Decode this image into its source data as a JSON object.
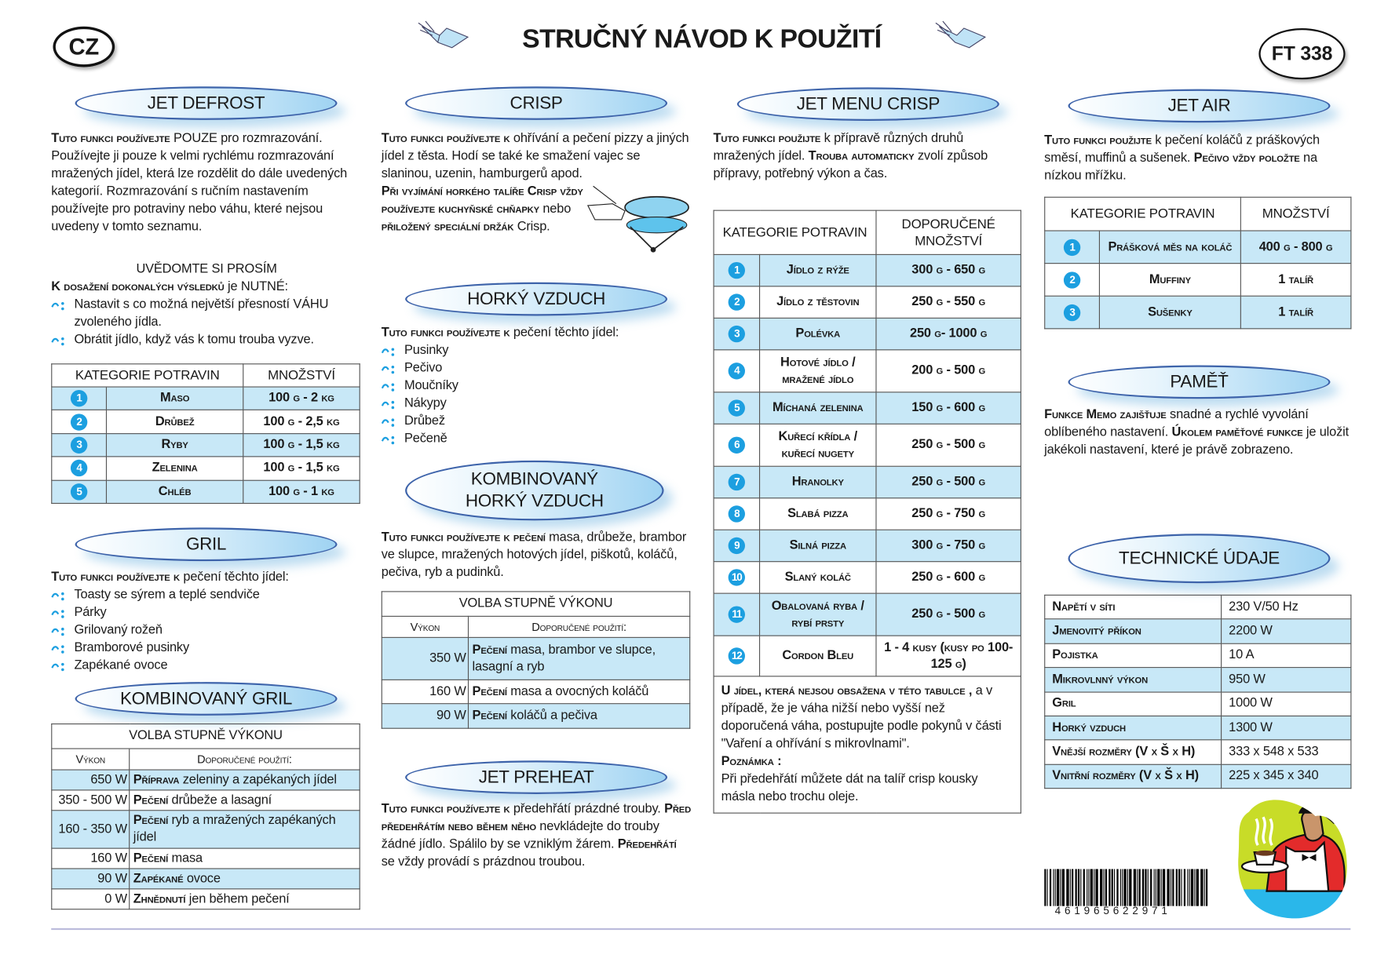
{
  "header": {
    "country": "CZ",
    "title": "STRUČNÝ NÁVOD K POUŽITÍ",
    "model": "FT 338"
  },
  "colors": {
    "accent": "#1c9fe0",
    "table_row": "#c8e8f7",
    "pill_border": "#3d63aa"
  },
  "jet_defrost": {
    "title": "JET DEFROST",
    "intro": [
      {
        "s": "Tuto funkci používejte"
      },
      {
        "t": " POUZE pro rozmrazování."
      },
      {
        "t": " Používejte ji pouze k velmi rychlému rozmrazování mražených jídel, která lze rozdělit do dále uvedených kategorií. Rozmrazování s ručním nastavením používejte pro potraviny nebo váhu, které nejsou uvedeny v tomto seznamu."
      }
    ],
    "note_heading": "UVĚDOMTE SI PROSÍM",
    "note": [
      {
        "s": "K dosažení dokonalých výsledků"
      },
      {
        "t": " je NUTNÉ:"
      }
    ],
    "bullets": [
      "Nastavit s co možná největší přesností VÁHU zvoleného jídla.",
      "Obrátit jídlo, když vás k tomu trouba vyzve."
    ],
    "table": {
      "headers": [
        "KATEGORIE POTRAVIN",
        "MNOŽSTVÍ"
      ],
      "rows": [
        {
          "n": "1",
          "name": "Maso",
          "qty": "100 g - 2 kg"
        },
        {
          "n": "2",
          "name": "Drůbež",
          "qty": "100 g - 2,5 kg"
        },
        {
          "n": "3",
          "name": "Ryby",
          "qty": "100 g - 1,5 kg"
        },
        {
          "n": "4",
          "name": "Zelenina",
          "qty": "100 g - 1,5 kg"
        },
        {
          "n": "5",
          "name": "Chléb",
          "qty": "100 g - 1 kg"
        }
      ]
    }
  },
  "gril": {
    "title": "GRIL",
    "intro": [
      {
        "s": "Tuto funkci používejte k"
      },
      {
        "t": " pečení těchto jídel:"
      }
    ],
    "bullets": [
      "Toasty se sýrem a teplé sendviče",
      "Párky",
      "Grilovaný rožeň",
      "Bramborové pusinky",
      "Zapékané ovoce"
    ]
  },
  "kombinovany_gril": {
    "title": "KOMBINOVANÝ GRIL",
    "table": {
      "title": "VOLBA STUPNĚ VÝKONU",
      "headers": [
        "Výkon",
        "Doporučené použití:"
      ],
      "rows": [
        {
          "p": "650 W",
          "lead": "Příprava",
          "text": " zeleniny a zapékaných jídel"
        },
        {
          "p": "350 - 500 W",
          "lead": "Pečení",
          "text": " drůbeže a lasagní"
        },
        {
          "p": "160 - 350 W",
          "lead": "Pečení",
          "text": " ryb a mražených zapékaných jídel"
        },
        {
          "p": "160 W",
          "lead": "Pečení",
          "text": " masa"
        },
        {
          "p": "90 W",
          "lead": "Zapékané",
          "text": " ovoce"
        },
        {
          "p": "0 W",
          "lead": "Zhnědnutí",
          "text": " jen během pečení"
        }
      ]
    }
  },
  "crisp": {
    "title": "CRISP",
    "intro": [
      {
        "s": "Tuto funkci používejte k"
      },
      {
        "t": " ohřívání a pečení pizzy a jiných jídel z těsta. Hodí se také ke smažení vajec se slaninou, uzenin, hamburgerů apod."
      }
    ],
    "warning": [
      {
        "s": "Při vyjímání horkého talíře Crisp vždy používejte kuchyňské chňapky"
      },
      {
        "t": " nebo "
      },
      {
        "s": "přiložený speciální držák"
      },
      {
        "t": " Crisp."
      }
    ]
  },
  "horky_vzduch": {
    "title": "HORKÝ VZDUCH",
    "intro": [
      {
        "s": "Tuto funkci používejte k"
      },
      {
        "t": " pečení těchto jídel:"
      }
    ],
    "bullets": [
      "Pusinky",
      "Pečivo",
      "Moučníky",
      "Nákypy",
      "Drůbež",
      "Pečeně"
    ]
  },
  "kombinovany_horky_vzduch": {
    "title": "KOMBINOVANÝ HORKÝ VZDUCH",
    "intro": [
      {
        "s": "Tuto funkci používejte k pečení"
      },
      {
        "t": " masa, drůbeže, brambor ve slupce, mražených hotových jídel, piškotů, koláčů, pečiva, ryb a pudinků."
      }
    ],
    "table": {
      "title": "VOLBA STUPNĚ VÝKONU",
      "headers": [
        "Výkon",
        "Doporučené použití:"
      ],
      "rows": [
        {
          "p": "350 W",
          "lead": "Pečení",
          "text": " masa, brambor ve slupce, lasagní a ryb"
        },
        {
          "p": "160 W",
          "lead": "Pečení",
          "text": " masa a ovocných koláčů"
        },
        {
          "p": "90 W",
          "lead": "Pečení",
          "text": " koláčů a pečiva"
        }
      ]
    }
  },
  "jet_preheat": {
    "title": "JET PREHEAT",
    "text": [
      {
        "s": "Tuto funkci používejte k"
      },
      {
        "t": " předehřátí prázdné trouby. "
      },
      {
        "s": "Před předehřátím nebo během něho"
      },
      {
        "t": " nevkládejte do trouby žádné jídlo. Spálilo by se vzniklým žárem. "
      },
      {
        "s": "Předehřátí"
      },
      {
        "t": " se vždy provádí s prázdnou troubou."
      }
    ]
  },
  "jet_menu_crisp": {
    "title": "JET MENU CRISP",
    "intro": [
      {
        "s": "Tuto funkci použijte"
      },
      {
        "t": " k přípravě různých druhů mražených jídel. "
      },
      {
        "s": "Trouba automaticky"
      },
      {
        "t": " zvolí způsob přípravy, potřebný výkon a čas."
      }
    ],
    "table": {
      "headers": [
        "KATEGORIE POTRAVIN",
        "DOPORUČENÉ MNOŽSTVÍ"
      ],
      "rows": [
        {
          "n": "1",
          "name": "Jídlo z rýže",
          "qty": "300 g - 650 g"
        },
        {
          "n": "2",
          "name": "Jídlo z těstovin",
          "qty": "250 g - 550 g"
        },
        {
          "n": "3",
          "name": "Polévka",
          "qty": "250 g- 1000 g"
        },
        {
          "n": "4",
          "name": "Hotové jídlo / mražené jídlo",
          "qty": "200 g - 500 g"
        },
        {
          "n": "5",
          "name": "Míchaná zelenina",
          "qty": "150 g - 600 g"
        },
        {
          "n": "6",
          "name": "Kuřecí křídla / kuřecí nugety",
          "qty": "250 g - 500 g"
        },
        {
          "n": "7",
          "name": "Hranolky",
          "qty": "250 g - 500 g"
        },
        {
          "n": "8",
          "name": "Slabá pizza",
          "qty": "250 g - 750 g"
        },
        {
          "n": "9",
          "name": "Silná pizza",
          "qty": "300 g - 750 g"
        },
        {
          "n": "10",
          "name": "Slaný koláč",
          "qty": "250 g - 600 g"
        },
        {
          "n": "11",
          "name": "Obalovaná ryba / rybí prsty",
          "qty": "250 g - 500 g"
        },
        {
          "n": "12",
          "name": "Cordon Bleu",
          "qty": "1 - 4 kusy (kusy po 100-125 g)"
        }
      ],
      "note": [
        {
          "s": "U jídel, která nejsou obsažena v této tabulce ,"
        },
        {
          "t": " a v případě, že je váha nižší nebo vyšší než doporučená váha, postupujte podle pokynů v části \"Vaření a ohřívání s mikrovlnami\"."
        }
      ],
      "remark_label": "Poznámka :",
      "remark": "Při předehřátí můžete dát na talíř crisp kousky másla nebo trochu oleje."
    }
  },
  "jet_air": {
    "title": "JET AIR",
    "intro": [
      {
        "s": "Tuto funkci použijte"
      },
      {
        "t": " k pečení koláčů z práškových směsí, muffinů a sušenek. "
      },
      {
        "s": "Pečivo vždy položte"
      },
      {
        "t": "  na nízkou mřížku."
      }
    ],
    "table": {
      "headers": [
        "KATEGORIE POTRAVIN",
        "MNOŽSTVÍ"
      ],
      "rows": [
        {
          "n": "1",
          "name": "Prášková měs na koláč",
          "qty": "400 g - 800 g"
        },
        {
          "n": "2",
          "name": "Muffiny",
          "qty": "1 talíř"
        },
        {
          "n": "3",
          "name": "Sušenky",
          "qty": "1 talíř"
        }
      ]
    }
  },
  "pamet": {
    "title": "PAMĚŤ",
    "text": [
      {
        "s": "Funkce Memo zajišťuje"
      },
      {
        "t": " snadné a rychlé vyvolání oblíbeného nastavení. "
      },
      {
        "s": "Úkolem paměťové funkce"
      },
      {
        "t": " je uložit jakékoli nastavení, které je právě zobrazeno."
      }
    ]
  },
  "technicke_udaje": {
    "title": "TECHNICKÉ ÚDAJE",
    "rows": [
      {
        "k": "Napětí v síti",
        "v": "230 V/50 Hz"
      },
      {
        "k": "Jmenovitý příkon",
        "v": "2200 W"
      },
      {
        "k": "Pojistka",
        "v": "10 A"
      },
      {
        "k": "Mikrovlnný výkon",
        "v": "950 W"
      },
      {
        "k": "Gril",
        "v": "1000 W"
      },
      {
        "k": "Horký vzduch",
        "v": "1300 W"
      },
      {
        "k": "Vnější rozměry (V x Š x H)",
        "v": "333 x 548 x 533"
      },
      {
        "k": "Vnitřní rozměry (V x Š x H)",
        "v": "225 x 345 x 340"
      }
    ]
  },
  "barcode": {
    "digits": "461965622971"
  },
  "icons": {
    "bullet": "wave-dots-icon",
    "header_decoration": "flying-book-icon",
    "chef": "chef-serving-coffee-illustration",
    "crisp_pan": "hand-holding-crisp-plate-illustration"
  }
}
